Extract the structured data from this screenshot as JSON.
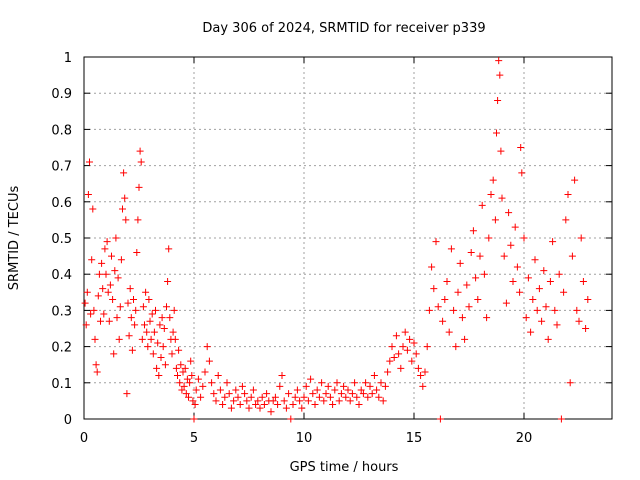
{
  "chart_data": {
    "type": "scatter",
    "title": "Day 306 of 2024, SRMTID for receiver p339",
    "xlabel": "GPS time / hours",
    "ylabel": "SRMTID / TECUs",
    "xlim": [
      0,
      24
    ],
    "ylim": [
      0,
      1
    ],
    "xticks": [
      0,
      5,
      10,
      15,
      20
    ],
    "yticks": [
      0,
      0.1,
      0.2,
      0.3,
      0.4,
      0.5,
      0.6,
      0.7,
      0.8,
      0.9,
      1
    ],
    "grid": true,
    "marker": "plus",
    "series_color": "#ff0000",
    "series": [
      {
        "name": "SRMTID",
        "points": [
          [
            0.05,
            0.32
          ],
          [
            0.1,
            0.26
          ],
          [
            0.15,
            0.35
          ],
          [
            0.2,
            0.62
          ],
          [
            0.25,
            0.71
          ],
          [
            0.3,
            0.29
          ],
          [
            0.35,
            0.44
          ],
          [
            0.4,
            0.58
          ],
          [
            0.45,
            0.3
          ],
          [
            0.5,
            0.22
          ],
          [
            0.55,
            0.15
          ],
          [
            0.6,
            0.13
          ],
          [
            0.65,
            0.34
          ],
          [
            0.7,
            0.4
          ],
          [
            0.75,
            0.27
          ],
          [
            0.8,
            0.43
          ],
          [
            0.85,
            0.36
          ],
          [
            0.9,
            0.29
          ],
          [
            0.95,
            0.47
          ],
          [
            1.0,
            0.4
          ],
          [
            1.05,
            0.49
          ],
          [
            1.1,
            0.35
          ],
          [
            1.15,
            0.27
          ],
          [
            1.2,
            0.37
          ],
          [
            1.25,
            0.45
          ],
          [
            1.3,
            0.33
          ],
          [
            1.35,
            0.18
          ],
          [
            1.4,
            0.41
          ],
          [
            1.45,
            0.5
          ],
          [
            1.5,
            0.28
          ],
          [
            1.55,
            0.39
          ],
          [
            1.6,
            0.22
          ],
          [
            1.65,
            0.31
          ],
          [
            1.7,
            0.44
          ],
          [
            1.75,
            0.58
          ],
          [
            1.8,
            0.68
          ],
          [
            1.85,
            0.61
          ],
          [
            1.9,
            0.55
          ],
          [
            1.95,
            0.07
          ],
          [
            2.0,
            0.32
          ],
          [
            2.05,
            0.23
          ],
          [
            2.1,
            0.36
          ],
          [
            2.15,
            0.28
          ],
          [
            2.2,
            0.19
          ],
          [
            2.25,
            0.33
          ],
          [
            2.3,
            0.26
          ],
          [
            2.35,
            0.3
          ],
          [
            2.4,
            0.46
          ],
          [
            2.45,
            0.55
          ],
          [
            2.5,
            0.64
          ],
          [
            2.55,
            0.74
          ],
          [
            2.6,
            0.71
          ],
          [
            2.65,
            0.22
          ],
          [
            2.7,
            0.31
          ],
          [
            2.75,
            0.26
          ],
          [
            2.8,
            0.35
          ],
          [
            2.85,
            0.24
          ],
          [
            2.9,
            0.2
          ],
          [
            2.95,
            0.33
          ],
          [
            3.0,
            0.27
          ],
          [
            3.05,
            0.22
          ],
          [
            3.1,
            0.29
          ],
          [
            3.15,
            0.18
          ],
          [
            3.2,
            0.24
          ],
          [
            3.25,
            0.3
          ],
          [
            3.3,
            0.14
          ],
          [
            3.35,
            0.21
          ],
          [
            3.4,
            0.12
          ],
          [
            3.45,
            0.26
          ],
          [
            3.5,
            0.17
          ],
          [
            3.55,
            0.28
          ],
          [
            3.6,
            0.2
          ],
          [
            3.65,
            0.25
          ],
          [
            3.7,
            0.15
          ],
          [
            3.75,
            0.31
          ],
          [
            3.8,
            0.38
          ],
          [
            3.85,
            0.47
          ],
          [
            3.9,
            0.28
          ],
          [
            3.95,
            0.22
          ],
          [
            4.0,
            0.18
          ],
          [
            4.05,
            0.24
          ],
          [
            4.1,
            0.3
          ],
          [
            4.15,
            0.22
          ],
          [
            4.2,
            0.14
          ],
          [
            4.25,
            0.12
          ],
          [
            4.3,
            0.19
          ],
          [
            4.35,
            0.1
          ],
          [
            4.4,
            0.15
          ],
          [
            4.45,
            0.08
          ],
          [
            4.5,
            0.13
          ],
          [
            4.55,
            0.09
          ],
          [
            4.6,
            0.14
          ],
          [
            4.65,
            0.07
          ],
          [
            4.7,
            0.11
          ],
          [
            4.75,
            0.06
          ],
          [
            4.8,
            0.1
          ],
          [
            4.85,
            0.16
          ],
          [
            4.9,
            0.12
          ],
          [
            4.95,
            0.05
          ],
          [
            5.0,
            0.0
          ],
          [
            5.05,
            0.04
          ],
          [
            5.1,
            0.08
          ],
          [
            5.2,
            0.11
          ],
          [
            5.3,
            0.06
          ],
          [
            5.4,
            0.09
          ],
          [
            5.5,
            0.13
          ],
          [
            5.6,
            0.2
          ],
          [
            5.7,
            0.16
          ],
          [
            5.8,
            0.1
          ],
          [
            5.9,
            0.07
          ],
          [
            6.0,
            0.05
          ],
          [
            6.1,
            0.12
          ],
          [
            6.2,
            0.08
          ],
          [
            6.3,
            0.04
          ],
          [
            6.4,
            0.06
          ],
          [
            6.5,
            0.1
          ],
          [
            6.6,
            0.07
          ],
          [
            6.7,
            0.03
          ],
          [
            6.8,
            0.05
          ],
          [
            6.9,
            0.08
          ],
          [
            7.0,
            0.06
          ],
          [
            7.1,
            0.04
          ],
          [
            7.2,
            0.09
          ],
          [
            7.3,
            0.07
          ],
          [
            7.4,
            0.05
          ],
          [
            7.5,
            0.03
          ],
          [
            7.6,
            0.06
          ],
          [
            7.7,
            0.08
          ],
          [
            7.8,
            0.04
          ],
          [
            7.9,
            0.05
          ],
          [
            8.0,
            0.03
          ],
          [
            8.1,
            0.06
          ],
          [
            8.2,
            0.04
          ],
          [
            8.3,
            0.07
          ],
          [
            8.4,
            0.05
          ],
          [
            8.5,
            0.02
          ],
          [
            8.6,
            0.05
          ],
          [
            8.7,
            0.06
          ],
          [
            8.8,
            0.04
          ],
          [
            8.9,
            0.09
          ],
          [
            9.0,
            0.12
          ],
          [
            9.1,
            0.05
          ],
          [
            9.2,
            0.03
          ],
          [
            9.3,
            0.07
          ],
          [
            9.4,
            0.0
          ],
          [
            9.5,
            0.04
          ],
          [
            9.6,
            0.06
          ],
          [
            9.7,
            0.08
          ],
          [
            9.8,
            0.05
          ],
          [
            9.9,
            0.03
          ],
          [
            10.0,
            0.06
          ],
          [
            10.1,
            0.09
          ],
          [
            10.2,
            0.05
          ],
          [
            10.3,
            0.11
          ],
          [
            10.4,
            0.07
          ],
          [
            10.5,
            0.04
          ],
          [
            10.6,
            0.08
          ],
          [
            10.7,
            0.06
          ],
          [
            10.8,
            0.1
          ],
          [
            10.9,
            0.05
          ],
          [
            11.0,
            0.07
          ],
          [
            11.1,
            0.09
          ],
          [
            11.2,
            0.06
          ],
          [
            11.3,
            0.04
          ],
          [
            11.4,
            0.08
          ],
          [
            11.5,
            0.1
          ],
          [
            11.6,
            0.05
          ],
          [
            11.7,
            0.07
          ],
          [
            11.8,
            0.09
          ],
          [
            11.9,
            0.06
          ],
          [
            12.0,
            0.08
          ],
          [
            12.1,
            0.05
          ],
          [
            12.2,
            0.07
          ],
          [
            12.3,
            0.1
          ],
          [
            12.4,
            0.06
          ],
          [
            12.5,
            0.04
          ],
          [
            12.6,
            0.08
          ],
          [
            12.7,
            0.07
          ],
          [
            12.8,
            0.1
          ],
          [
            12.9,
            0.06
          ],
          [
            13.0,
            0.09
          ],
          [
            13.1,
            0.07
          ],
          [
            13.2,
            0.12
          ],
          [
            13.3,
            0.08
          ],
          [
            13.4,
            0.06
          ],
          [
            13.5,
            0.1
          ],
          [
            13.6,
            0.05
          ],
          [
            13.7,
            0.09
          ],
          [
            13.8,
            0.13
          ],
          [
            13.9,
            0.16
          ],
          [
            14.0,
            0.2
          ],
          [
            14.1,
            0.17
          ],
          [
            14.2,
            0.23
          ],
          [
            14.3,
            0.18
          ],
          [
            14.4,
            0.14
          ],
          [
            14.5,
            0.2
          ],
          [
            14.6,
            0.24
          ],
          [
            14.7,
            0.19
          ],
          [
            14.8,
            0.22
          ],
          [
            14.9,
            0.16
          ],
          [
            15.0,
            0.21
          ],
          [
            15.1,
            0.18
          ],
          [
            15.2,
            0.14
          ],
          [
            15.3,
            0.12
          ],
          [
            15.4,
            0.09
          ],
          [
            15.5,
            0.13
          ],
          [
            15.6,
            0.2
          ],
          [
            15.7,
            0.3
          ],
          [
            15.8,
            0.42
          ],
          [
            15.9,
            0.36
          ],
          [
            16.0,
            0.49
          ],
          [
            16.1,
            0.31
          ],
          [
            16.2,
            0.0
          ],
          [
            16.3,
            0.27
          ],
          [
            16.4,
            0.33
          ],
          [
            16.5,
            0.38
          ],
          [
            16.6,
            0.24
          ],
          [
            16.7,
            0.47
          ],
          [
            16.8,
            0.3
          ],
          [
            16.9,
            0.2
          ],
          [
            17.0,
            0.35
          ],
          [
            17.1,
            0.43
          ],
          [
            17.2,
            0.28
          ],
          [
            17.3,
            0.22
          ],
          [
            17.4,
            0.37
          ],
          [
            17.5,
            0.31
          ],
          [
            17.6,
            0.46
          ],
          [
            17.7,
            0.52
          ],
          [
            17.8,
            0.39
          ],
          [
            17.9,
            0.33
          ],
          [
            18.0,
            0.45
          ],
          [
            18.1,
            0.59
          ],
          [
            18.2,
            0.4
          ],
          [
            18.3,
            0.28
          ],
          [
            18.4,
            0.5
          ],
          [
            18.5,
            0.62
          ],
          [
            18.6,
            0.66
          ],
          [
            18.7,
            0.55
          ],
          [
            18.75,
            0.79
          ],
          [
            18.8,
            0.88
          ],
          [
            18.85,
            0.99
          ],
          [
            18.9,
            0.95
          ],
          [
            18.95,
            0.74
          ],
          [
            19.0,
            0.61
          ],
          [
            19.1,
            0.45
          ],
          [
            19.2,
            0.32
          ],
          [
            19.3,
            0.57
          ],
          [
            19.4,
            0.48
          ],
          [
            19.5,
            0.38
          ],
          [
            19.6,
            0.53
          ],
          [
            19.7,
            0.42
          ],
          [
            19.8,
            0.35
          ],
          [
            19.85,
            0.75
          ],
          [
            19.9,
            0.68
          ],
          [
            20.0,
            0.5
          ],
          [
            20.1,
            0.28
          ],
          [
            20.2,
            0.39
          ],
          [
            20.3,
            0.24
          ],
          [
            20.4,
            0.33
          ],
          [
            20.5,
            0.44
          ],
          [
            20.6,
            0.3
          ],
          [
            20.7,
            0.36
          ],
          [
            20.8,
            0.27
          ],
          [
            20.9,
            0.41
          ],
          [
            21.0,
            0.31
          ],
          [
            21.1,
            0.22
          ],
          [
            21.2,
            0.38
          ],
          [
            21.3,
            0.49
          ],
          [
            21.4,
            0.3
          ],
          [
            21.5,
            0.26
          ],
          [
            21.6,
            0.4
          ],
          [
            21.7,
            0.0
          ],
          [
            21.8,
            0.35
          ],
          [
            21.9,
            0.55
          ],
          [
            22.0,
            0.62
          ],
          [
            22.1,
            0.1
          ],
          [
            22.2,
            0.45
          ],
          [
            22.3,
            0.66
          ],
          [
            22.4,
            0.3
          ],
          [
            22.5,
            0.27
          ],
          [
            22.6,
            0.5
          ],
          [
            22.7,
            0.38
          ],
          [
            22.8,
            0.25
          ],
          [
            22.9,
            0.33
          ]
        ]
      }
    ]
  }
}
